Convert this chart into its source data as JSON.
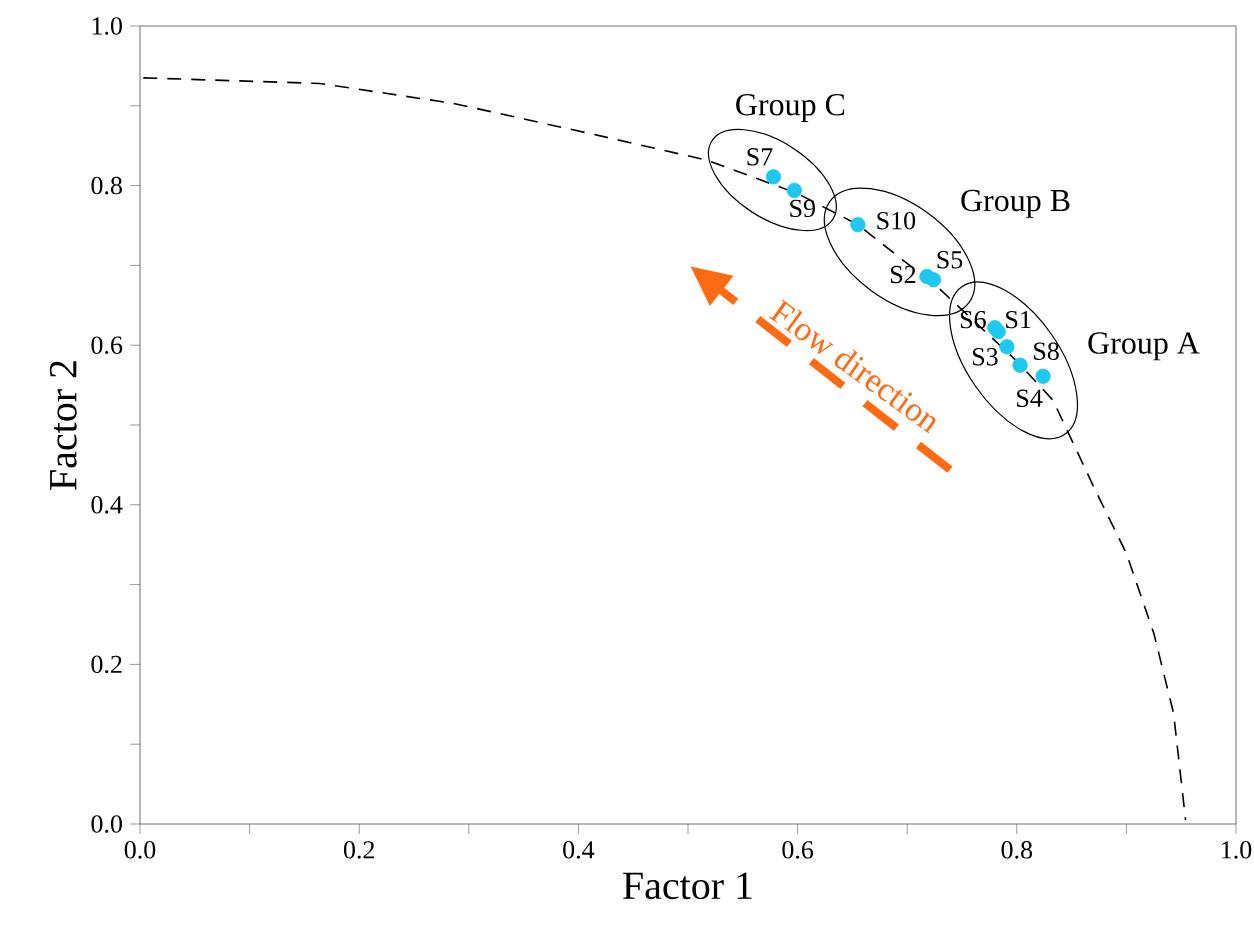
{
  "chart_data": {
    "type": "scatter",
    "xlabel": "Factor 1",
    "ylabel": "Factor 2",
    "xlim": [
      0,
      1
    ],
    "ylim": [
      0,
      1
    ],
    "xticks": [
      {
        "value": 0,
        "label": "0.0"
      },
      {
        "value": 0.1,
        "label": null
      },
      {
        "value": 0.2,
        "label": "0.2"
      },
      {
        "value": 0.3,
        "label": null
      },
      {
        "value": 0.4,
        "label": "0.4"
      },
      {
        "value": 0.5,
        "label": null
      },
      {
        "value": 0.6,
        "label": "0.6"
      },
      {
        "value": 0.7,
        "label": null
      },
      {
        "value": 0.8,
        "label": "0.8"
      },
      {
        "value": 0.9,
        "label": null
      },
      {
        "value": 1,
        "label": "1.0"
      }
    ],
    "yticks": [
      {
        "value": 0,
        "label": "0.0"
      },
      {
        "value": 0.1,
        "label": null
      },
      {
        "value": 0.2,
        "label": "0.2"
      },
      {
        "value": 0.3,
        "label": null
      },
      {
        "value": 0.4,
        "label": "0.4"
      },
      {
        "value": 0.5,
        "label": null
      },
      {
        "value": 0.6,
        "label": "0.6"
      },
      {
        "value": 0.7,
        "label": null
      },
      {
        "value": 0.8,
        "label": "0.8"
      },
      {
        "value": 0.9,
        "label": null
      },
      {
        "value": 1,
        "label": "1.0"
      }
    ],
    "series": [
      {
        "type": "line",
        "color": "#000000",
        "line_style": "dashed",
        "marker": "none",
        "x": [
          0.003,
          0.164,
          0.286,
          0.408,
          0.517,
          0.6,
          0.655,
          0.73,
          0.8,
          0.833,
          0.87,
          0.9,
          0.925,
          0.943,
          0.954
        ],
        "values": [
          0.935,
          0.928,
          0.903,
          0.866,
          0.832,
          0.79,
          0.751,
          0.67,
          0.58,
          0.531,
          0.423,
          0.339,
          0.239,
          0.139,
          0.005
        ]
      },
      {
        "type": "scatter",
        "color": "#1ec8f0",
        "marker": "circle",
        "x": [
          0.578,
          0.597,
          0.655,
          0.718,
          0.724,
          0.78,
          0.783,
          0.791,
          0.803,
          0.824
        ],
        "values": [
          0.811,
          0.794,
          0.751,
          0.686,
          0.682,
          0.622,
          0.617,
          0.598,
          0.575,
          0.561
        ]
      }
    ],
    "annotations": [
      {
        "text": "S7",
        "x": 0.578,
        "y": 0.811
      },
      {
        "text": "S9",
        "x": 0.597,
        "y": 0.794
      },
      {
        "text": "S10",
        "x": 0.655,
        "y": 0.751
      },
      {
        "text": "S2",
        "x": 0.718,
        "y": 0.686
      },
      {
        "text": "S5",
        "x": 0.724,
        "y": 0.682
      },
      {
        "text": "S6",
        "x": 0.78,
        "y": 0.622
      },
      {
        "text": "S1",
        "x": 0.783,
        "y": 0.617
      },
      {
        "text": "S3",
        "x": 0.791,
        "y": 0.598
      },
      {
        "text": "S8",
        "x": 0.803,
        "y": 0.575
      },
      {
        "text": "S4",
        "x": 0.824,
        "y": 0.561
      },
      "Group C",
      "Group B",
      "Group A",
      "Flow direction"
    ]
  }
}
